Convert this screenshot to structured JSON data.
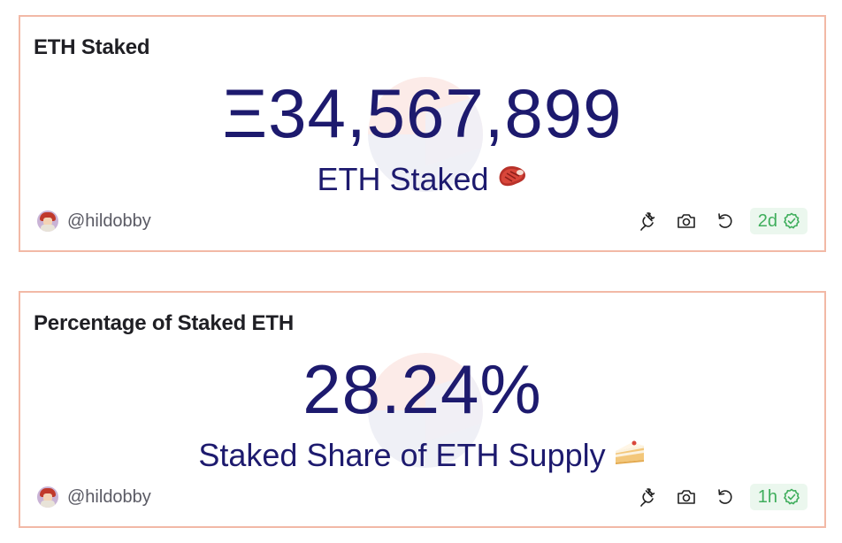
{
  "cards": [
    {
      "title": "ETH Staked",
      "value": "Ξ34,567,899",
      "label": "ETH Staked",
      "label_emoji": "🥩",
      "author": "@hildobby",
      "freshness": "2d"
    },
    {
      "title": "Percentage of Staked ETH",
      "value": "28.24%",
      "label": "Staked Share of ETH Supply",
      "label_emoji": "🍰",
      "author": "@hildobby",
      "freshness": "1h"
    }
  ],
  "icons": {
    "embed": "plug-icon",
    "screenshot": "camera-icon",
    "refresh": "refresh-icon",
    "fresh": "check-circle-icon"
  },
  "colors": {
    "card_border": "#f2b9a6",
    "value_text": "#1d1a6e",
    "fresh_green": "#3fae5c",
    "fresh_bg": "#ebf7ee"
  }
}
